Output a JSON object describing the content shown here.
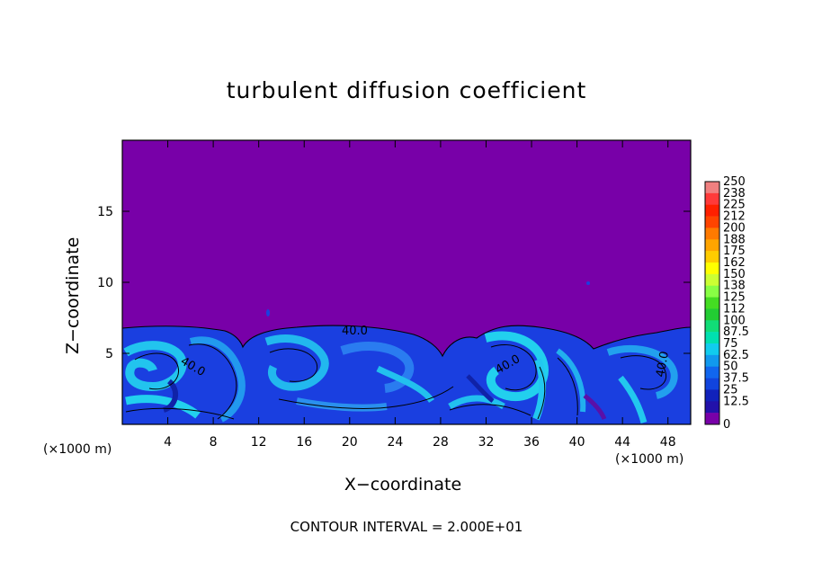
{
  "chart_data": {
    "type": "heatmap",
    "title": "turbulent diffusion coefficient",
    "xlabel": "X−coordinate",
    "ylabel": "Z−coordinate",
    "x_unit_left": "(×1000 m)",
    "x_unit_right": "(×1000 m)",
    "footer": "CONTOUR INTERVAL = 2.000E+01",
    "x_ticks": [
      4,
      8,
      12,
      16,
      20,
      24,
      28,
      32,
      36,
      40,
      44,
      48
    ],
    "y_ticks": [
      5,
      10,
      15
    ],
    "xlim": [
      0,
      50
    ],
    "ylim": [
      0,
      20
    ],
    "colorbar": {
      "levels": [
        "250",
        "238",
        "225",
        "212",
        "200",
        "188",
        "175",
        "162",
        "150",
        "138",
        "125",
        "112",
        "100",
        "87.5",
        "75",
        "62.5",
        "50",
        "37.5",
        "25",
        "12.5",
        "0"
      ],
      "colors": [
        "#f08080",
        "#ff3a3a",
        "#ff2000",
        "#ff4400",
        "#ff7a00",
        "#ffa500",
        "#ffcc00",
        "#ffff00",
        "#ccff33",
        "#88ff44",
        "#44dd22",
        "#22cc33",
        "#11dd77",
        "#00e0b0",
        "#11ccee",
        "#1199ee",
        "#1166ee",
        "#1144dd",
        "#1122bb",
        "#2211aa",
        "#7800a8"
      ]
    },
    "contour_labels": [
      "40.0",
      "40.0",
      "40.0",
      "40.0"
    ],
    "turbulent_layer_top_z": 7
  }
}
